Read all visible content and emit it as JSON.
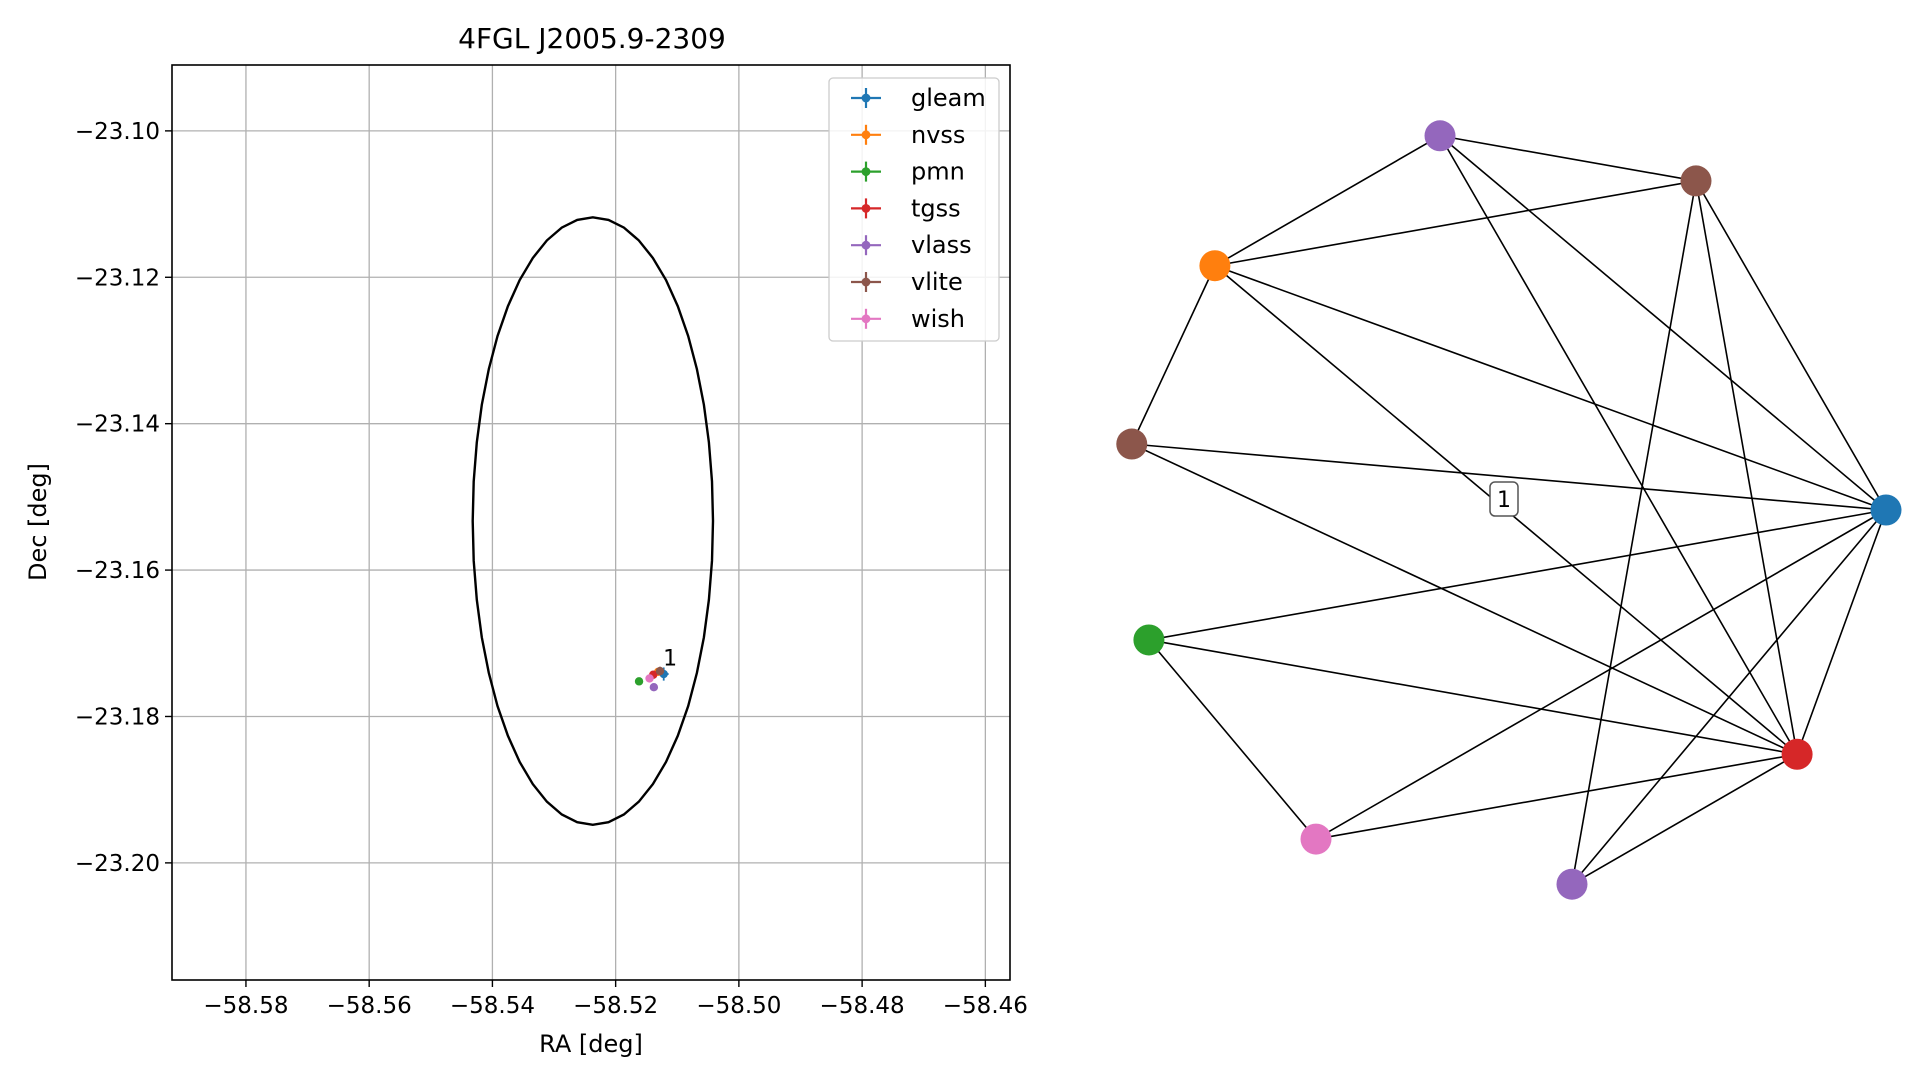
{
  "chart_data": [
    {
      "type": "scatter",
      "title": "4FGL J2005.9-2309",
      "xlabel": "RA [deg]",
      "ylabel": "Dec [deg]",
      "xlim": [
        -58.592,
        -58.456
      ],
      "ylim": [
        -23.216,
        -23.091
      ],
      "grid": true,
      "legend_position": "top-right",
      "xticks": [
        -58.58,
        -58.56,
        -58.54,
        -58.52,
        -58.5,
        -58.48,
        -58.46
      ],
      "yticks": [
        -23.1,
        -23.12,
        -23.14,
        -23.16,
        -23.18,
        -23.2
      ],
      "xtick_labels": [
        "−58.58",
        "−58.56",
        "−58.54",
        "−58.52",
        "−58.50",
        "−58.48",
        "−58.46"
      ],
      "ytick_labels": [
        "−23.10",
        "−23.12",
        "−23.14",
        "−23.16",
        "−23.18",
        "−23.20"
      ],
      "ellipse": {
        "center": [
          -58.5237,
          -23.1533
        ],
        "half_width_ra": 0.0195,
        "half_height_dec": 0.0415,
        "color": "#000000"
      },
      "series": [
        {
          "name": "gleam",
          "color": "#1f77b4",
          "x": -58.5122,
          "y": -23.1742,
          "xerr": 0.0008,
          "yerr": 0.0009
        },
        {
          "name": "nvss",
          "color": "#ff7f0e",
          "x": -58.5131,
          "y": -23.1739,
          "xerr": 0.0003,
          "yerr": 0.0004
        },
        {
          "name": "pmn",
          "color": "#2ca02c",
          "x": -58.5162,
          "y": -23.1752,
          "xerr": 0.0,
          "yerr": 0.0
        },
        {
          "name": "tgss",
          "color": "#d62728",
          "x": -58.5139,
          "y": -23.1743,
          "xerr": 0.0004,
          "yerr": 0.0005
        },
        {
          "name": "vlass",
          "color": "#9467bd",
          "x": -58.5138,
          "y": -23.176,
          "xerr": 0.0,
          "yerr": 0.0
        },
        {
          "name": "vlite",
          "color": "#8c564b",
          "x": -58.5128,
          "y": -23.1738,
          "xerr": 0.0006,
          "yerr": 0.0006
        },
        {
          "name": "wish",
          "color": "#e377c2",
          "x": -58.5145,
          "y": -23.1748,
          "xerr": 0.0005,
          "yerr": 0.0005
        }
      ],
      "annotations": [
        {
          "text": "1",
          "x": -58.5118,
          "y": -23.1725
        }
      ]
    },
    {
      "type": "network",
      "nodes": [
        {
          "id": "purple_top",
          "color": "#9467bd",
          "angle": 100
        },
        {
          "id": "orange",
          "color": "#ff7f0e",
          "angle": 140
        },
        {
          "id": "brown_right",
          "color": "#8c564b",
          "angle": 60
        },
        {
          "id": "brown_left",
          "color": "#8c564b",
          "angle": 170
        },
        {
          "id": "blue",
          "color": "#1f77b4",
          "angle": 0
        },
        {
          "id": "green",
          "color": "#2ca02c",
          "angle": 200
        },
        {
          "id": "red",
          "color": "#d62728",
          "angle": 320
        },
        {
          "id": "pink",
          "color": "#e377c2",
          "angle": 240
        },
        {
          "id": "purple_bottom",
          "color": "#9467bd",
          "angle": 280
        }
      ],
      "edges": [
        [
          "purple_top",
          "orange"
        ],
        [
          "purple_top",
          "brown_right"
        ],
        [
          "purple_top",
          "blue"
        ],
        [
          "purple_top",
          "red"
        ],
        [
          "orange",
          "brown_right"
        ],
        [
          "orange",
          "blue"
        ],
        [
          "orange",
          "red"
        ],
        [
          "orange",
          "brown_left"
        ],
        [
          "brown_right",
          "blue"
        ],
        [
          "brown_right",
          "red"
        ],
        [
          "brown_right",
          "purple_bottom"
        ],
        [
          "brown_left",
          "blue"
        ],
        [
          "brown_left",
          "red"
        ],
        [
          "blue",
          "green"
        ],
        [
          "blue",
          "red"
        ],
        [
          "blue",
          "pink"
        ],
        [
          "blue",
          "purple_bottom"
        ],
        [
          "green",
          "red"
        ],
        [
          "green",
          "pink"
        ],
        [
          "red",
          "pink"
        ],
        [
          "red",
          "purple_bottom"
        ]
      ],
      "component_label": "1"
    }
  ]
}
